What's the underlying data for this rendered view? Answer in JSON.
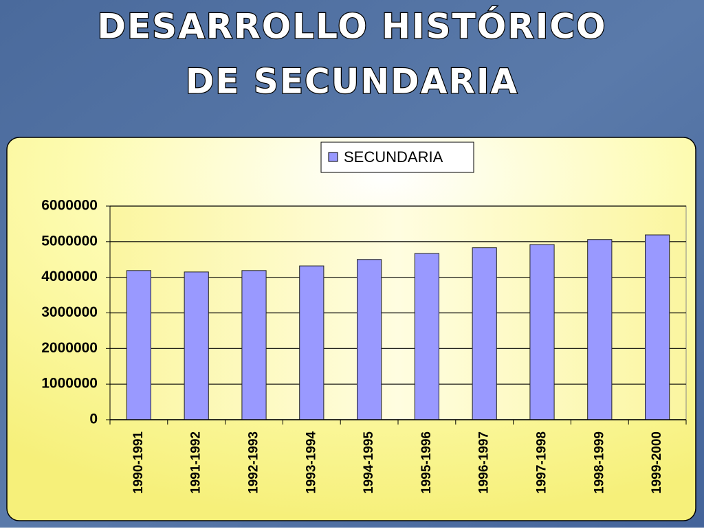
{
  "chart_data": {
    "type": "bar",
    "title": [
      "DESARROLLO HISTÓRICO",
      "DE SECUNDARIA"
    ],
    "categories": [
      "1990-1991",
      "1991-1992",
      "1992-1993",
      "1993-1994",
      "1994-1995",
      "1995-1996",
      "1996-1997",
      "1997-1998",
      "1998-1999",
      "1999-2000"
    ],
    "series": [
      {
        "name": "SECUNDARIA",
        "color": "#9999ff",
        "values": [
          4190000,
          4150000,
          4190000,
          4320000,
          4500000,
          4670000,
          4830000,
          4920000,
          5060000,
          5190000
        ]
      }
    ],
    "ylim": [
      0,
      6000000
    ],
    "yticks": [
      0,
      1000000,
      2000000,
      3000000,
      4000000,
      5000000,
      6000000
    ],
    "grid": true,
    "legend": "top"
  }
}
